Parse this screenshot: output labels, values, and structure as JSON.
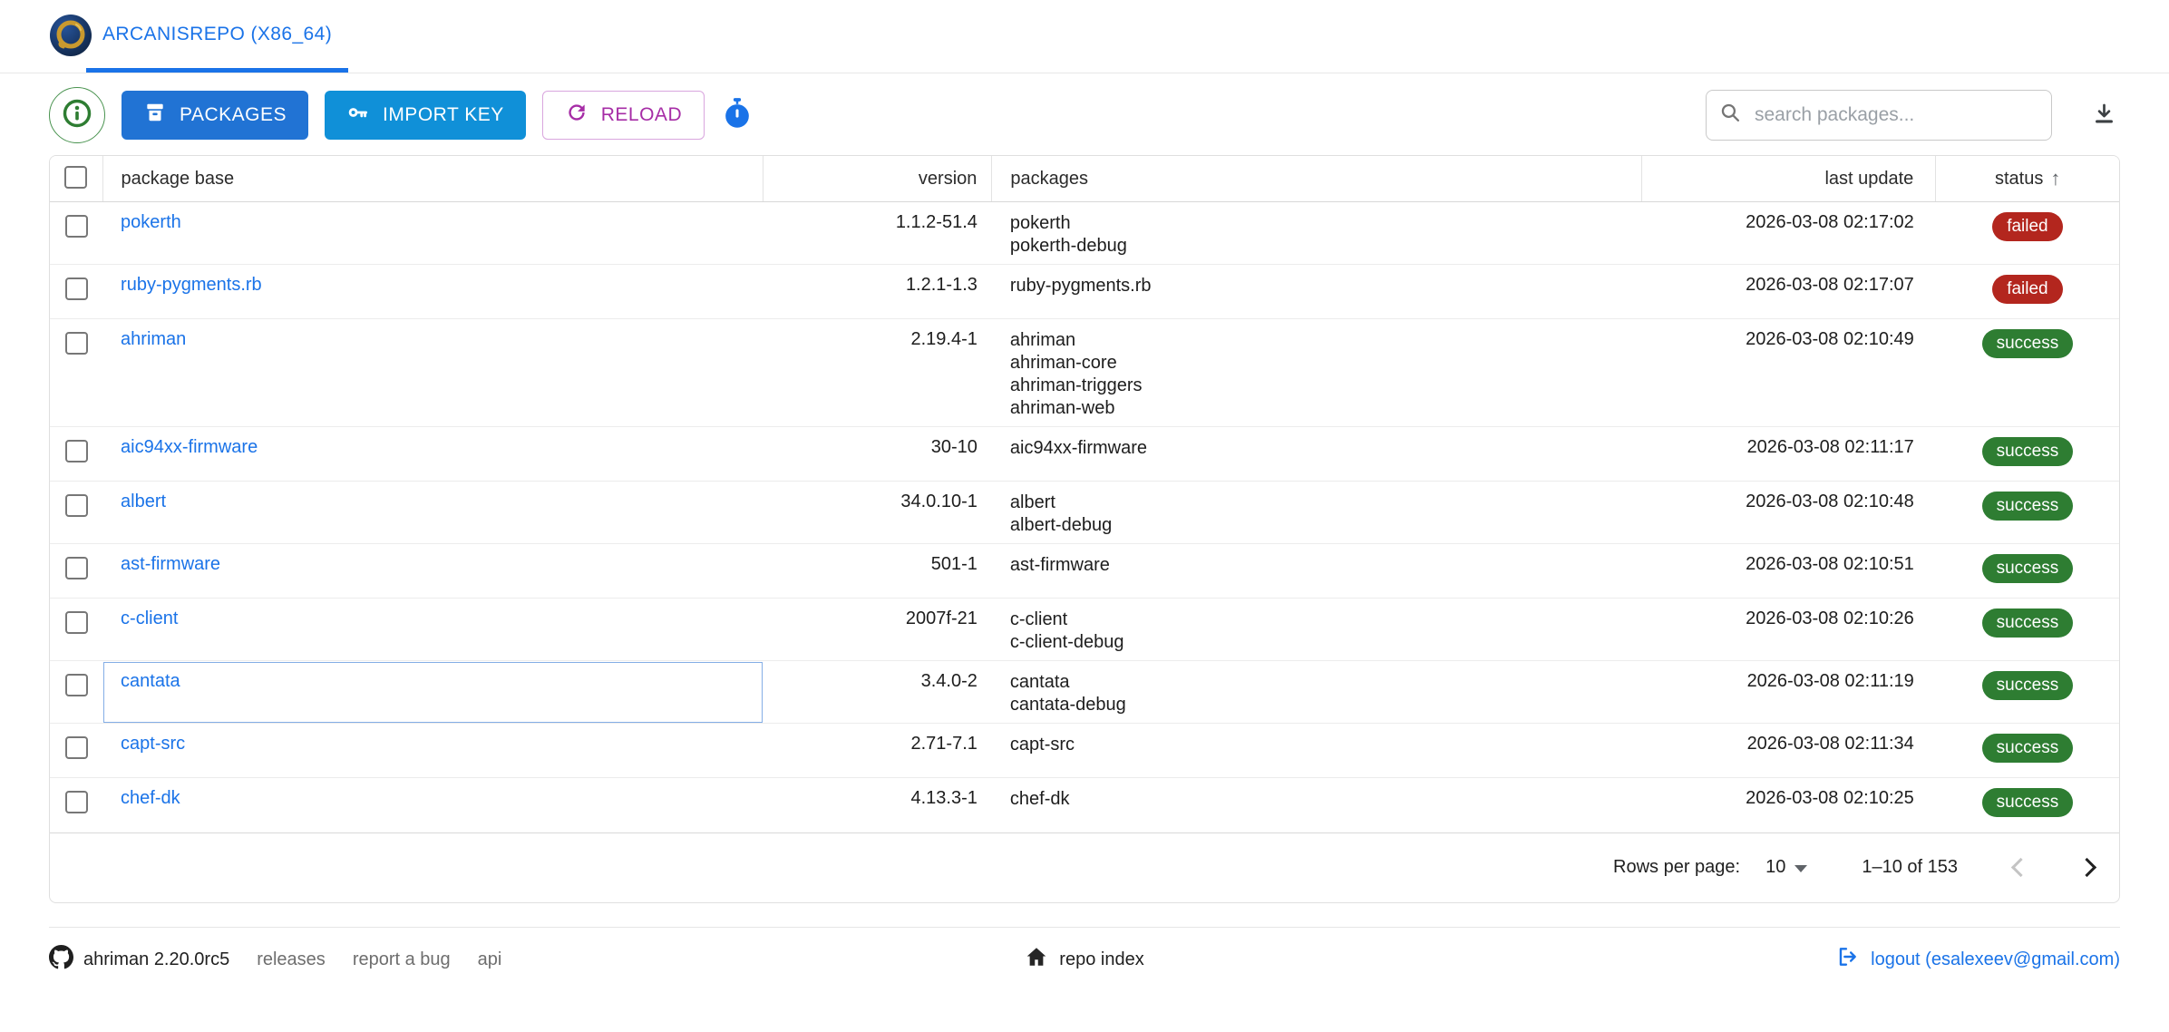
{
  "header": {
    "tab": "ARCANISREPO (X86_64)"
  },
  "toolbar": {
    "packages_label": "PACKAGES",
    "import_key_label": "IMPORT KEY",
    "reload_label": "RELOAD",
    "search_placeholder": "search packages..."
  },
  "table": {
    "columns": [
      "package base",
      "version",
      "packages",
      "last update",
      "status"
    ],
    "sort_column": "status",
    "rows": [
      {
        "base": "pokerth",
        "version": "1.1.2-51.4",
        "packages": [
          "pokerth",
          "pokerth-debug"
        ],
        "last_update": "2026-03-08 02:17:02",
        "status": "failed",
        "focused": false
      },
      {
        "base": "ruby-pygments.rb",
        "version": "1.2.1-1.3",
        "packages": [
          "ruby-pygments.rb"
        ],
        "last_update": "2026-03-08 02:17:07",
        "status": "failed",
        "focused": false
      },
      {
        "base": "ahriman",
        "version": "2.19.4-1",
        "packages": [
          "ahriman",
          "ahriman-core",
          "ahriman-triggers",
          "ahriman-web"
        ],
        "last_update": "2026-03-08 02:10:49",
        "status": "success",
        "focused": false
      },
      {
        "base": "aic94xx-firmware",
        "version": "30-10",
        "packages": [
          "aic94xx-firmware"
        ],
        "last_update": "2026-03-08 02:11:17",
        "status": "success",
        "focused": false
      },
      {
        "base": "albert",
        "version": "34.0.10-1",
        "packages": [
          "albert",
          "albert-debug"
        ],
        "last_update": "2026-03-08 02:10:48",
        "status": "success",
        "focused": false
      },
      {
        "base": "ast-firmware",
        "version": "501-1",
        "packages": [
          "ast-firmware"
        ],
        "last_update": "2026-03-08 02:10:51",
        "status": "success",
        "focused": false
      },
      {
        "base": "c-client",
        "version": "2007f-21",
        "packages": [
          "c-client",
          "c-client-debug"
        ],
        "last_update": "2026-03-08 02:10:26",
        "status": "success",
        "focused": false
      },
      {
        "base": "cantata",
        "version": "3.4.0-2",
        "packages": [
          "cantata",
          "cantata-debug"
        ],
        "last_update": "2026-03-08 02:11:19",
        "status": "success",
        "focused": true
      },
      {
        "base": "capt-src",
        "version": "2.71-7.1",
        "packages": [
          "capt-src"
        ],
        "last_update": "2026-03-08 02:11:34",
        "status": "success",
        "focused": false
      },
      {
        "base": "chef-dk",
        "version": "4.13.3-1",
        "packages": [
          "chef-dk"
        ],
        "last_update": "2026-03-08 02:10:25",
        "status": "success",
        "focused": false
      }
    ]
  },
  "pagination": {
    "rows_per_page_label": "Rows per page:",
    "rows_per_page": "10",
    "range": "1–10 of 153"
  },
  "footer": {
    "version": "ahriman 2.20.0rc5",
    "links": [
      "releases",
      "report a bug",
      "api"
    ],
    "repo_index": "repo index",
    "logout": "logout (esalexeev@gmail.com)"
  },
  "colors": {
    "accent_blue": "#1a73e8",
    "primary_button": "#2173d4",
    "import_button": "#1090d8",
    "reload_purple": "#a62ca6",
    "info_green": "#2e7d32",
    "failed_badge": "#b3261e",
    "success_badge": "#2e7d32"
  }
}
